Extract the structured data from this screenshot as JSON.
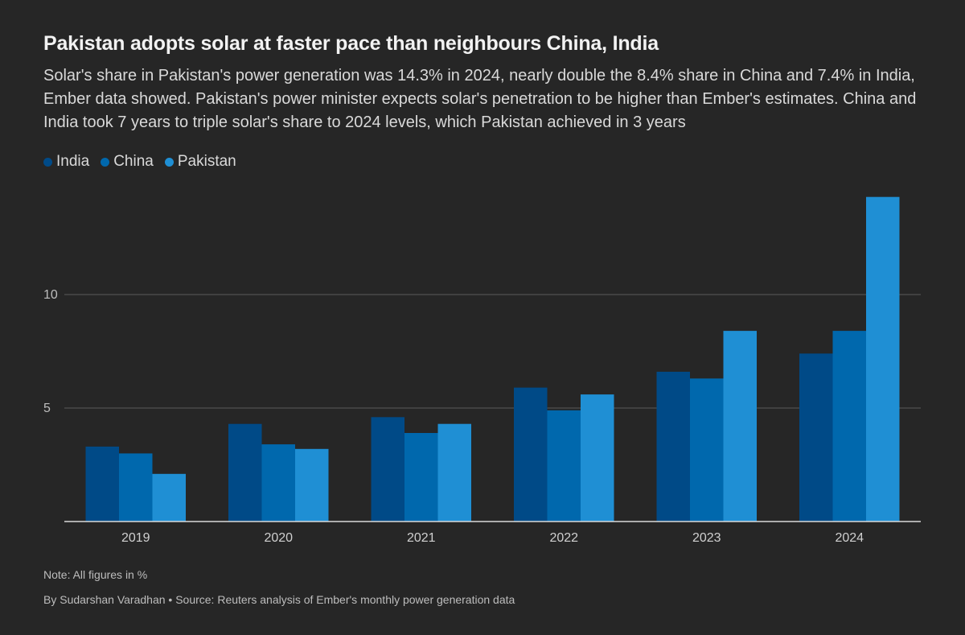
{
  "header": {
    "title": "Pakistan adopts solar at faster pace than neighbours China, India",
    "subtitle": "Solar's share in Pakistan's power generation was 14.3% in 2024, nearly double the 8.4% share in China and 7.4% in India, Ember data showed. Pakistan's power minister expects solar's penetration to be higher than Ember's estimates. China and India took 7 years to triple solar's share to 2024 levels, which Pakistan achieved in 3 years"
  },
  "colors": {
    "India": "#004a87",
    "China": "#0068ad",
    "Pakistan": "#1f8fd4",
    "background": "#262626",
    "grid": "#5a5a5a",
    "axis": "#d9d9d9"
  },
  "chart_data": {
    "type": "bar",
    "title": "Pakistan adopts solar at faster pace than neighbours China, India",
    "xlabel": "",
    "ylabel": "",
    "ylim": [
      0,
      14.3
    ],
    "yticks": [
      5,
      10
    ],
    "grid": true,
    "legend_position": "top-left",
    "categories": [
      "2019",
      "2020",
      "2021",
      "2022",
      "2023",
      "2024"
    ],
    "series": [
      {
        "name": "India",
        "values": [
          3.3,
          4.3,
          4.6,
          5.9,
          6.6,
          7.4
        ]
      },
      {
        "name": "China",
        "values": [
          3.0,
          3.4,
          3.9,
          4.9,
          6.3,
          8.4
        ]
      },
      {
        "name": "Pakistan",
        "values": [
          2.1,
          3.2,
          4.3,
          5.6,
          8.4,
          14.3
        ]
      }
    ]
  },
  "footer": {
    "note": "Note: All figures in %",
    "source": "By Sudarshan Varadhan • Source: Reuters analysis of Ember's monthly power generation data"
  }
}
